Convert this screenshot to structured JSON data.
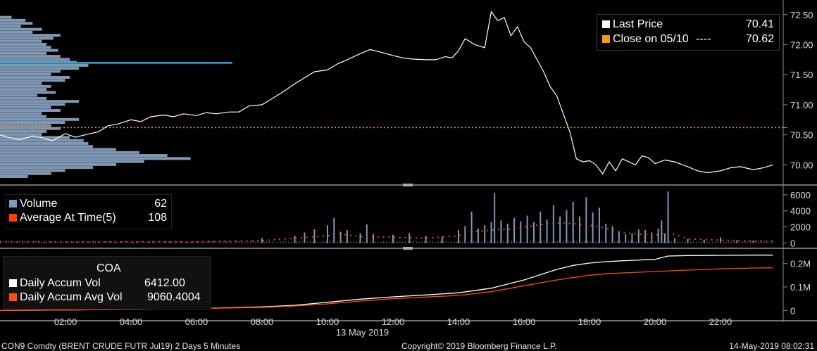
{
  "colors": {
    "background": "#000000",
    "price_line": "#ffffff",
    "close_line": "#f39c12",
    "profile_bar": "#8ea8c8",
    "profile_highlight": "#2aa7d6",
    "volume_bar": "#7f99b8",
    "avg_marker": "#ff3d00",
    "accum_vol": "#ffffff",
    "accum_avg": "#ff4a1a",
    "axis": "#8c8c8c",
    "panel_border": "#6f6f6f"
  },
  "price_legend": {
    "last_price_label": "Last Price",
    "last_price_value": "70.41",
    "close_label": "Close on 05/10",
    "close_dashes": "----",
    "close_value": "70.62"
  },
  "volume_legend": {
    "volume_label": "Volume",
    "volume_value": "62",
    "avg_label": "Average At Time(5)",
    "avg_value": "108"
  },
  "accum_legend": {
    "title": "COA",
    "daily_accum_label": "Daily Accum Vol",
    "daily_accum_value": "6412.00",
    "avg_accum_label": "Daily Accum Avg Vol",
    "avg_accum_value": "9060.4004"
  },
  "footer": {
    "left": "CON9 Comdty (BRENT CRUDE FUTR  Jul19) 2 Days 5 Minutes",
    "center": "Copyright© 2019 Bloomberg Finance L.P.",
    "right": "14-May-2019 08:02:31"
  },
  "chart_data": [
    {
      "type": "line",
      "name": "price",
      "x_unit": "hour",
      "ylim": [
        69.7,
        72.65
      ],
      "yticks": [
        70.0,
        70.5,
        71.0,
        71.5,
        72.0,
        72.5
      ],
      "ytick_labels": [
        "70.00",
        "70.50",
        "71.00",
        "71.50",
        "72.00",
        "72.50"
      ],
      "close_reference": 70.62,
      "series": [
        {
          "name": "Last Price",
          "x": [
            0,
            0.3,
            0.6,
            1.0,
            1.3,
            1.6,
            2.0,
            2.3,
            2.6,
            3.0,
            3.3,
            3.6,
            4.0,
            4.3,
            4.6,
            5.0,
            5.3,
            5.6,
            6.0,
            6.3,
            6.6,
            7.0,
            7.3,
            7.6,
            8.0,
            8.3,
            8.6,
            9.0,
            9.3,
            9.6,
            10.0,
            10.3,
            10.6,
            11.0,
            11.3,
            11.6,
            12.0,
            12.3,
            12.6,
            13.0,
            13.3,
            13.6,
            13.8,
            14.0,
            14.2,
            14.5,
            14.8,
            15.0,
            15.2,
            15.4,
            15.6,
            15.8,
            16.0,
            16.2,
            16.4,
            16.6,
            16.8,
            17.0,
            17.2,
            17.4,
            17.6,
            17.8,
            18.0,
            18.2,
            18.4,
            18.6,
            18.8,
            19.0,
            19.2,
            19.4,
            19.6,
            19.8,
            20.0,
            20.3,
            20.6,
            21.0,
            21.3,
            21.6,
            22.0,
            22.3,
            22.6,
            23.0,
            23.3,
            23.6
          ],
          "y": [
            70.5,
            70.45,
            70.42,
            70.48,
            70.45,
            70.4,
            70.52,
            70.46,
            70.5,
            70.55,
            70.65,
            70.68,
            70.75,
            70.72,
            70.8,
            70.83,
            70.8,
            70.85,
            70.82,
            70.87,
            70.85,
            70.88,
            70.88,
            70.98,
            71.0,
            71.1,
            71.2,
            71.35,
            71.45,
            71.55,
            71.58,
            71.68,
            71.75,
            71.85,
            71.92,
            71.88,
            71.82,
            71.78,
            71.76,
            71.75,
            71.75,
            71.8,
            71.78,
            71.9,
            72.1,
            72.0,
            71.95,
            72.55,
            72.4,
            72.45,
            72.15,
            72.3,
            72.05,
            71.95,
            71.75,
            71.55,
            71.3,
            71.15,
            70.85,
            70.55,
            70.1,
            70.05,
            70.07,
            70.0,
            69.85,
            70.05,
            69.9,
            70.1,
            70.05,
            70.0,
            70.15,
            70.12,
            70.02,
            70.08,
            70.05,
            69.97,
            69.9,
            69.87,
            69.9,
            69.95,
            69.97,
            69.92,
            69.95,
            70.0
          ]
        },
        {
          "name": "Close on 05/10",
          "x": [
            0,
            23.6
          ],
          "y": [
            70.62,
            70.62
          ]
        }
      ],
      "volume_profile": {
        "levels": [
          72.45,
          72.4,
          72.35,
          72.3,
          72.25,
          72.2,
          72.15,
          72.1,
          72.05,
          72.0,
          71.95,
          71.9,
          71.85,
          71.8,
          71.75,
          71.7,
          71.65,
          71.6,
          71.55,
          71.5,
          71.45,
          71.4,
          71.35,
          71.3,
          71.25,
          71.2,
          71.15,
          71.1,
          71.05,
          71.0,
          70.95,
          70.9,
          70.85,
          70.8,
          70.75,
          70.7,
          70.65,
          70.6,
          70.55,
          70.5,
          70.45,
          70.4,
          70.35,
          70.3,
          70.25,
          70.2,
          70.15,
          70.1,
          70.05,
          70.0,
          69.95,
          69.9,
          69.85,
          69.8
        ],
        "lengths": [
          0.05,
          0.11,
          0.14,
          0.09,
          0.18,
          0.14,
          0.26,
          0.23,
          0.18,
          0.2,
          0.22,
          0.25,
          0.2,
          0.26,
          0.3,
          0.33,
          0.38,
          0.34,
          0.26,
          0.22,
          0.3,
          0.28,
          0.18,
          0.22,
          0.2,
          0.24,
          0.16,
          0.2,
          0.34,
          0.28,
          0.22,
          0.26,
          0.18,
          0.2,
          0.34,
          0.28,
          0.22,
          0.26,
          0.2,
          0.18,
          0.3,
          0.36,
          0.38,
          0.4,
          0.5,
          0.6,
          0.72,
          0.82,
          0.62,
          0.5,
          0.4,
          0.28,
          0.22,
          0.12
        ],
        "highlight_level": 71.7,
        "highlight_length": 1.0
      }
    },
    {
      "type": "bar",
      "name": "volume",
      "x_unit": "hour",
      "ylim": [
        -400,
        6600
      ],
      "yticks": [
        0,
        2000,
        4000,
        6000
      ],
      "ytick_labels": [
        "0",
        "2000",
        "4000",
        "6000"
      ],
      "series": [
        {
          "name": "Volume",
          "x": [
            8.0,
            9.0,
            9.3,
            9.6,
            10.0,
            10.2,
            10.4,
            10.6,
            11.0,
            11.2,
            11.4,
            12.0,
            12.5,
            13.0,
            13.5,
            14.0,
            14.2,
            14.4,
            14.6,
            14.8,
            15.0,
            15.1,
            15.3,
            15.5,
            15.7,
            15.9,
            16.1,
            16.3,
            16.5,
            16.7,
            16.9,
            17.1,
            17.3,
            17.5,
            17.7,
            17.9,
            18.1,
            18.3,
            18.5,
            18.7,
            18.9,
            19.1,
            19.3,
            19.5,
            19.7,
            19.9,
            20.1,
            20.2,
            20.3,
            20.4,
            20.6,
            21.0,
            21.5,
            22.0,
            22.5,
            23.0
          ],
          "y": [
            600,
            900,
            1300,
            1700,
            2200,
            3100,
            1400,
            1600,
            1200,
            2300,
            1100,
            1000,
            1200,
            900,
            800,
            1600,
            2100,
            3900,
            1800,
            2200,
            2600,
            6200,
            2800,
            2400,
            3100,
            2700,
            3400,
            2600,
            3900,
            2900,
            4700,
            3300,
            4100,
            5100,
            3300,
            5700,
            3800,
            4400,
            2400,
            2100,
            1400,
            1100,
            1200,
            1700,
            1600,
            1300,
            1800,
            2800,
            1200,
            6400,
            600,
            500,
            400,
            700,
            350,
            300
          ]
        },
        {
          "name": "Average At Time(5)",
          "x": [
            0,
            2,
            4,
            6,
            8,
            9,
            10,
            10.4,
            11,
            12,
            13,
            14,
            14.4,
            15,
            15.5,
            16,
            16.5,
            17,
            17.5,
            18,
            18.5,
            19,
            19.5,
            20,
            20.4,
            21,
            22,
            23
          ],
          "y": [
            150,
            120,
            150,
            150,
            300,
            600,
            900,
            1100,
            800,
            700,
            600,
            900,
            1400,
            1600,
            1700,
            2000,
            2300,
            2500,
            2400,
            2200,
            1800,
            1300,
            1100,
            1000,
            1300,
            500,
            350,
            250
          ]
        }
      ]
    },
    {
      "type": "line",
      "name": "daily accumulated volume",
      "x_unit": "hour",
      "ylim": [
        -20000,
        250000
      ],
      "yticks": [
        0,
        100000,
        200000
      ],
      "ytick_labels": [
        "0",
        "0.1M",
        "0.2M"
      ],
      "xticks": [
        2,
        4,
        6,
        8,
        10,
        12,
        14,
        16,
        18,
        20,
        22
      ],
      "xtick_labels": [
        "02:00",
        "04:00",
        "06:00",
        "08:00",
        "10:00",
        "12:00",
        "14:00",
        "16:00",
        "18:00",
        "20:00",
        "22:00"
      ],
      "date_label": "13 May 2019",
      "date_label_x": 11.0,
      "series": [
        {
          "name": "Daily Accum Vol",
          "x": [
            0,
            2,
            4,
            6,
            8,
            9,
            10,
            11,
            12,
            13,
            14,
            15,
            16,
            17,
            17.5,
            18,
            18.5,
            19,
            20,
            20.4,
            21,
            22,
            23,
            23.6
          ],
          "y": [
            0,
            2000,
            5000,
            8000,
            15000,
            22000,
            35000,
            48000,
            58000,
            66000,
            75000,
            95000,
            130000,
            175000,
            192000,
            202000,
            208000,
            212000,
            218000,
            232000,
            234000,
            235000,
            236000,
            236000
          ]
        },
        {
          "name": "Daily Accum Avg Vol",
          "x": [
            0,
            2,
            4,
            6,
            8,
            9,
            10,
            11,
            12,
            13,
            14,
            15,
            16,
            17,
            17.5,
            18,
            18.5,
            19,
            20,
            21,
            22,
            23,
            23.6
          ],
          "y": [
            0,
            2000,
            5000,
            8000,
            13000,
            19000,
            28000,
            40000,
            50000,
            57000,
            64000,
            80000,
            105000,
            130000,
            140000,
            150000,
            156000,
            160000,
            166000,
            172000,
            177000,
            181000,
            182000
          ]
        }
      ]
    }
  ]
}
